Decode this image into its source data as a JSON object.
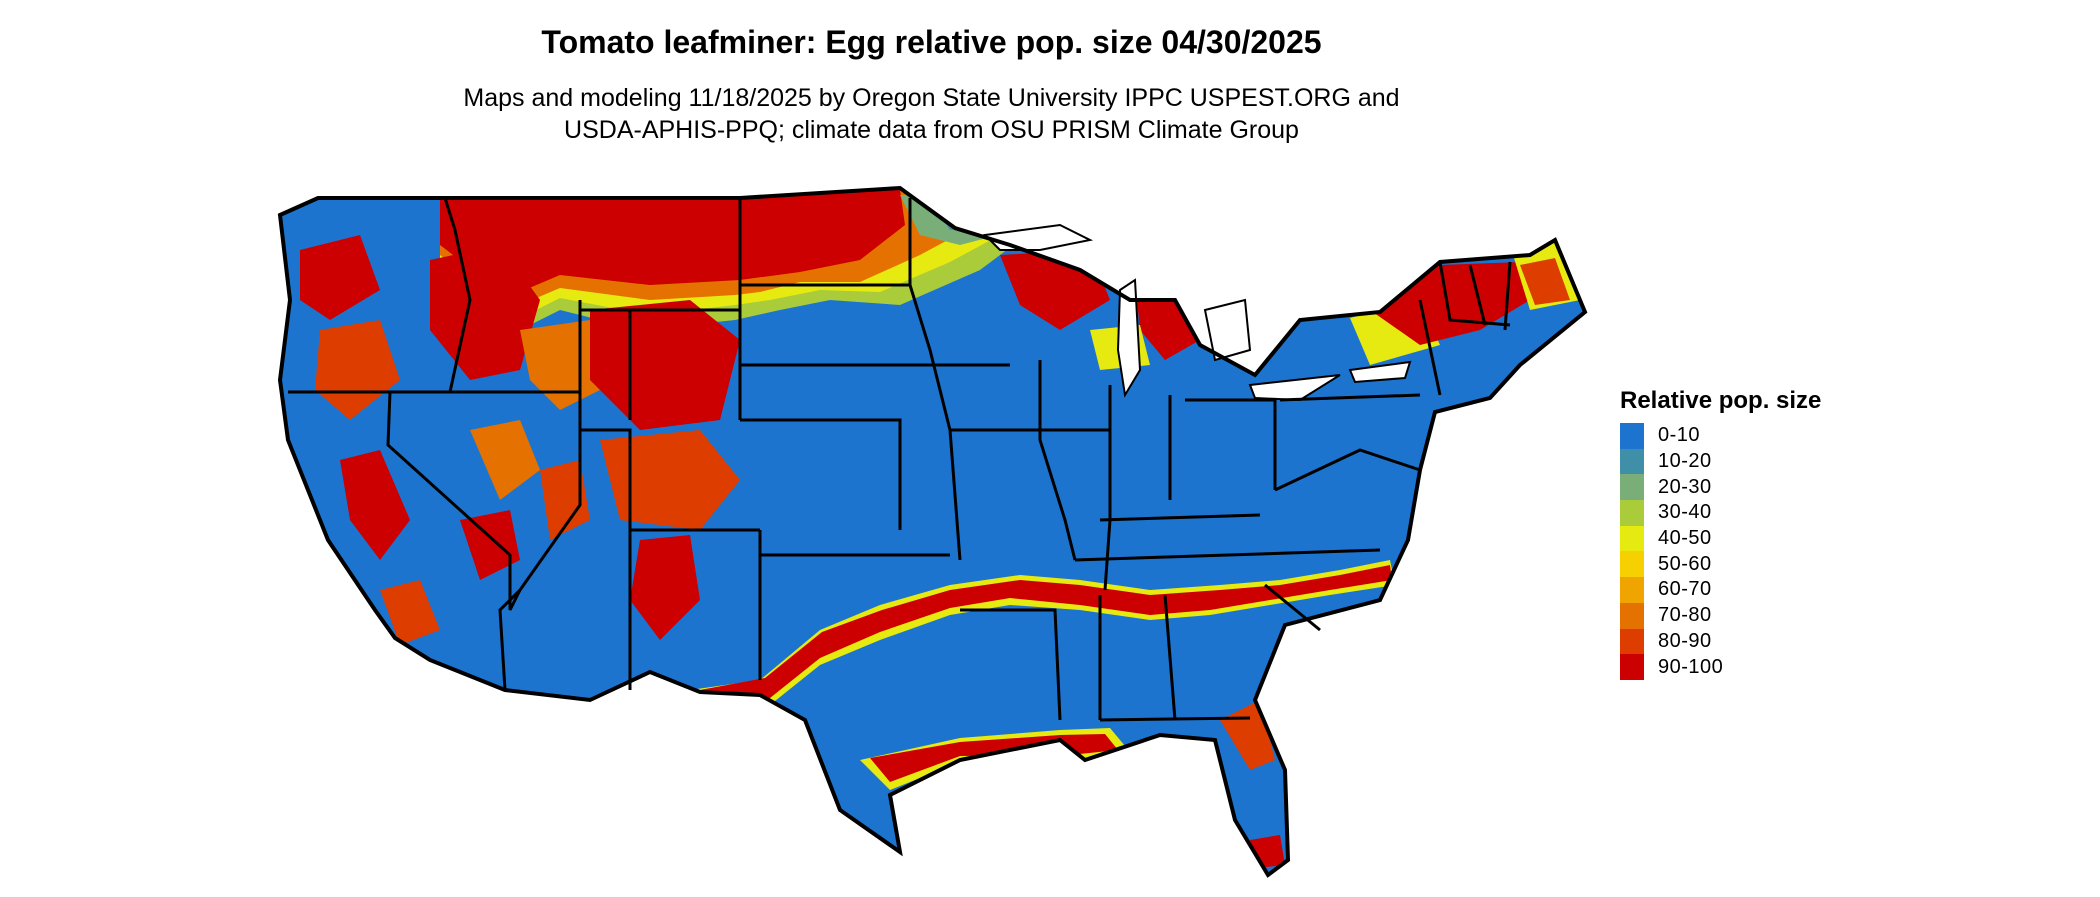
{
  "title": "Tomato leafminer: Egg relative pop. size 04/30/2025",
  "subtitle_lines": [
    "Maps and modeling 11/18/2025 by Oregon State University IPPC USPEST.ORG and",
    "USDA-APHIS-PPQ; climate data from OSU PRISM Climate Group"
  ],
  "legend": {
    "title": "Relative pop. size",
    "items": [
      {
        "label": "0-10",
        "color": "#1c74cf"
      },
      {
        "label": "10-20",
        "color": "#3f8fa8"
      },
      {
        "label": "20-30",
        "color": "#7aae78"
      },
      {
        "label": "30-40",
        "color": "#aacc3a"
      },
      {
        "label": "40-50",
        "color": "#e6ea10"
      },
      {
        "label": "50-60",
        "color": "#f6d000"
      },
      {
        "label": "60-70",
        "color": "#f0a400"
      },
      {
        "label": "70-80",
        "color": "#e57200"
      },
      {
        "label": "80-90",
        "color": "#dd3e00"
      },
      {
        "label": "90-100",
        "color": "#cc0000"
      }
    ]
  }
}
